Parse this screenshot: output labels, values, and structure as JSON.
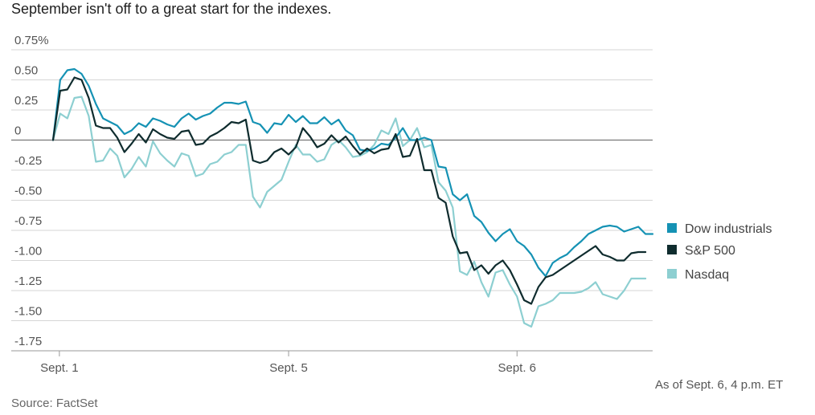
{
  "title": "September isn't off to a great start for the indexes.",
  "source": "Source: FactSet",
  "as_of": "As of Sept. 6, 4 p.m. ET",
  "chart_data": {
    "type": "line",
    "ylim": [
      -1.8,
      0.8
    ],
    "y_ticks": [
      0.75,
      0.5,
      0.25,
      0,
      -0.25,
      -0.5,
      -0.75,
      -1.0,
      -1.25,
      -1.5,
      -1.75
    ],
    "y_tick_labels": [
      "0.75%",
      "0.50",
      "0.25",
      "0",
      "-0.25",
      "-0.50",
      "-0.75",
      "-1.00",
      "-1.25",
      "-1.50",
      "-1.75"
    ],
    "x_tick_labels": [
      {
        "label": "Sept. 1",
        "index": 1
      },
      {
        "label": "Sept. 5",
        "index": 33
      },
      {
        "label": "Sept. 6",
        "index": 65
      }
    ],
    "grid": true,
    "legend_position": "right",
    "series": [
      {
        "name": "Dow industrials",
        "color": "#1592b4",
        "values": [
          0.0,
          0.5,
          0.58,
          0.59,
          0.55,
          0.45,
          0.3,
          0.18,
          0.15,
          0.12,
          0.05,
          0.08,
          0.14,
          0.11,
          0.18,
          0.16,
          0.13,
          0.11,
          0.18,
          0.22,
          0.17,
          0.2,
          0.22,
          0.27,
          0.31,
          0.31,
          0.3,
          0.32,
          0.15,
          0.13,
          0.06,
          0.14,
          0.13,
          0.21,
          0.15,
          0.2,
          0.14,
          0.14,
          0.19,
          0.13,
          0.17,
          0.08,
          0.04,
          -0.08,
          -0.09,
          -0.07,
          -0.03,
          -0.04,
          0.02,
          0.1,
          0.0,
          0.0,
          0.02,
          0.0,
          -0.22,
          -0.23,
          -0.45,
          -0.5,
          -0.45,
          -0.63,
          -0.68,
          -0.77,
          -0.84,
          -0.78,
          -0.74,
          -0.84,
          -0.88,
          -0.95,
          -1.06,
          -1.13,
          -1.02,
          -0.98,
          -0.95,
          -0.89,
          -0.84,
          -0.78,
          -0.75,
          -0.72,
          -0.71,
          -0.72,
          -0.76,
          -0.74,
          -0.72,
          -0.78,
          -0.78
        ]
      },
      {
        "name": "S&P 500",
        "color": "#0f2c2e",
        "values": [
          0.0,
          0.41,
          0.42,
          0.52,
          0.5,
          0.35,
          0.12,
          0.1,
          0.1,
          0.02,
          -0.1,
          -0.03,
          0.05,
          -0.02,
          0.09,
          0.05,
          0.02,
          0.01,
          0.07,
          0.08,
          -0.04,
          -0.03,
          0.03,
          0.06,
          0.1,
          0.15,
          0.14,
          0.17,
          -0.17,
          -0.19,
          -0.17,
          -0.1,
          -0.07,
          -0.12,
          -0.06,
          0.1,
          0.03,
          -0.06,
          -0.03,
          0.04,
          -0.02,
          0.03,
          -0.05,
          -0.12,
          -0.07,
          -0.11,
          -0.08,
          -0.07,
          0.05,
          -0.14,
          -0.13,
          0.01,
          -0.25,
          -0.25,
          -0.48,
          -0.52,
          -0.8,
          -0.94,
          -0.93,
          -1.08,
          -1.04,
          -1.11,
          -1.04,
          -1.0,
          -1.08,
          -1.2,
          -1.33,
          -1.36,
          -1.22,
          -1.14,
          -1.12,
          -1.08,
          -1.04,
          -1.0,
          -0.96,
          -0.92,
          -0.88,
          -0.95,
          -0.97,
          -1.0,
          -1.0,
          -0.94,
          -0.93,
          -0.93
        ]
      },
      {
        "name": "Nasdaq",
        "color": "#8dcfd1",
        "values": [
          0.0,
          0.22,
          0.18,
          0.35,
          0.36,
          0.2,
          -0.18,
          -0.17,
          -0.07,
          -0.13,
          -0.31,
          -0.24,
          -0.14,
          -0.22,
          -0.01,
          -0.11,
          -0.17,
          -0.22,
          -0.11,
          -0.13,
          -0.3,
          -0.28,
          -0.2,
          -0.18,
          -0.12,
          -0.1,
          -0.04,
          -0.04,
          -0.47,
          -0.56,
          -0.43,
          -0.38,
          -0.33,
          -0.18,
          -0.04,
          -0.12,
          -0.12,
          -0.18,
          -0.16,
          -0.04,
          0.0,
          -0.06,
          -0.14,
          -0.13,
          -0.1,
          -0.04,
          0.08,
          0.05,
          0.18,
          -0.05,
          0.0,
          0.1,
          -0.06,
          -0.04,
          -0.35,
          -0.42,
          -0.56,
          -1.09,
          -1.12,
          -1.01,
          -1.18,
          -1.3,
          -1.1,
          -1.08,
          -1.2,
          -1.3,
          -1.52,
          -1.55,
          -1.38,
          -1.36,
          -1.33,
          -1.27,
          -1.27,
          -1.27,
          -1.26,
          -1.23,
          -1.18,
          -1.28,
          -1.3,
          -1.32,
          -1.25,
          -1.15,
          -1.15,
          -1.15
        ]
      }
    ]
  }
}
